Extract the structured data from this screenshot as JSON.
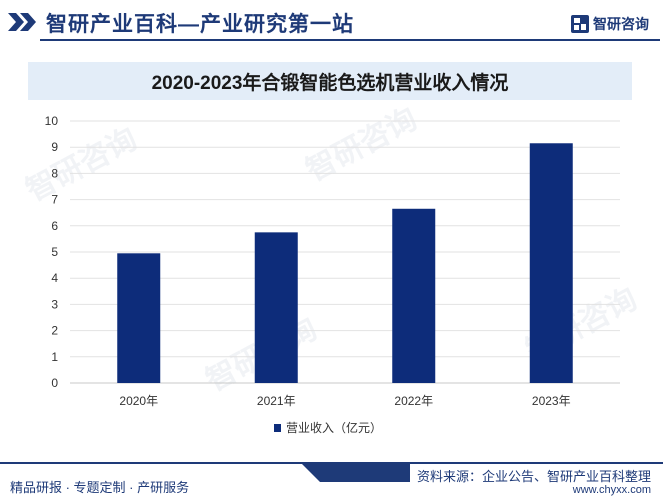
{
  "header": {
    "title": "智研产业百科—产业研究第一站",
    "logo_text": "智研咨询"
  },
  "chart_data": {
    "type": "bar",
    "title": "2020-2023年合锻智能色选机营业收入情况",
    "categories": [
      "2020年",
      "2021年",
      "2022年",
      "2023年"
    ],
    "series": [
      {
        "name": "营业收入（亿元）",
        "values": [
          4.95,
          5.75,
          6.65,
          9.15
        ],
        "color": "#0d2c7a"
      }
    ],
    "ylim": [
      0,
      10
    ],
    "yticks": [
      0,
      1,
      2,
      3,
      4,
      5,
      6,
      7,
      8,
      9,
      10
    ],
    "grid": true,
    "legend": "bottom-center"
  },
  "watermark_text": "智研咨询",
  "footer": {
    "left": "精品研报 · 专题定制 · 产研服务",
    "source": "资料来源：企业公告、智研产业百科整理",
    "url": "www.chyxx.com"
  },
  "colors": {
    "brand": "#1e3a78",
    "bar": "#0d2c7a",
    "title_bg": "#e3edf8"
  }
}
